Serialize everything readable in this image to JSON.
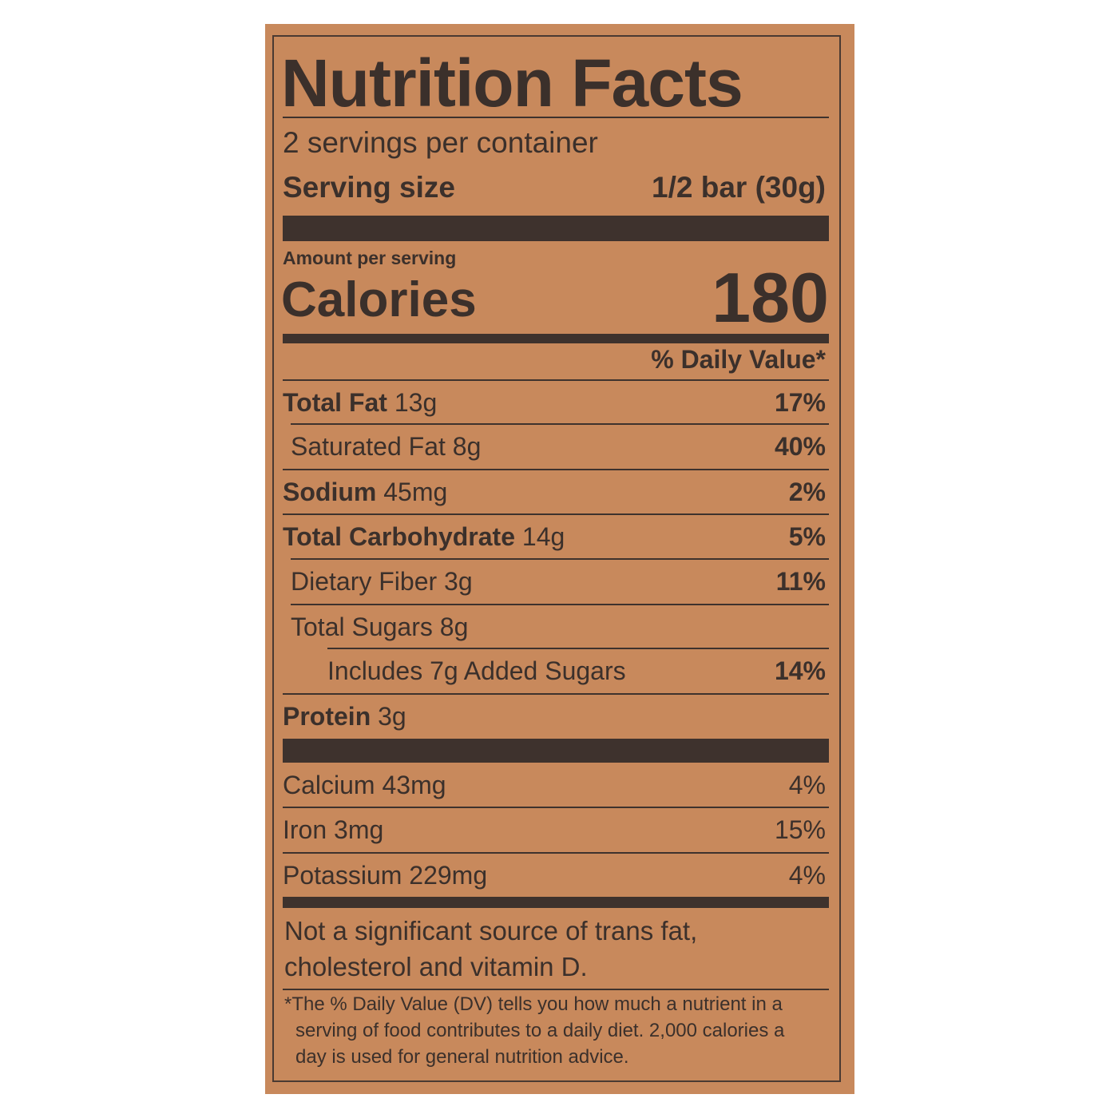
{
  "title": "Nutrition Facts",
  "servings_per_container": "2 servings per container",
  "serving_size": {
    "label": "Serving size",
    "value": "1/2 bar (30g)"
  },
  "amount_per_serving": "Amount per serving",
  "calories": {
    "label": "Calories",
    "value": "180"
  },
  "daily_value_header": "% Daily Value*",
  "nutrients": [
    {
      "name": "Total Fat",
      "amount": "13g",
      "dv": "17%"
    },
    {
      "name": "Saturated Fat",
      "amount": "8g",
      "dv": "40%"
    },
    {
      "name": "Sodium",
      "amount": "45mg",
      "dv": "2%"
    },
    {
      "name": "Total Carbohydrate",
      "amount": "14g",
      "dv": "5%"
    },
    {
      "name": "Dietary Fiber",
      "amount": "3g",
      "dv": "11%"
    },
    {
      "name": "Total Sugars",
      "amount": "8g",
      "dv": ""
    },
    {
      "name": "Includes 7g Added Sugars",
      "amount": "",
      "dv": "14%"
    },
    {
      "name": "Protein",
      "amount": "3g",
      "dv": ""
    }
  ],
  "minerals": [
    {
      "name": "Calcium",
      "amount": "43mg",
      "dv": "4%"
    },
    {
      "name": "Iron",
      "amount": "3mg",
      "dv": "15%"
    },
    {
      "name": "Potassium",
      "amount": "229mg",
      "dv": "4%"
    }
  ],
  "not_significant": [
    "Not a significant source of trans fat,",
    "cholesterol and vitamin D."
  ],
  "footnote": [
    "*The % Daily Value (DV) tells you how much a nutrient in a",
    "serving of food contributes to a daily diet. 2,000 calories a",
    "day is used for general nutrition advice."
  ],
  "colors": {
    "background": "#c8895c",
    "ink": "#3b302b"
  }
}
